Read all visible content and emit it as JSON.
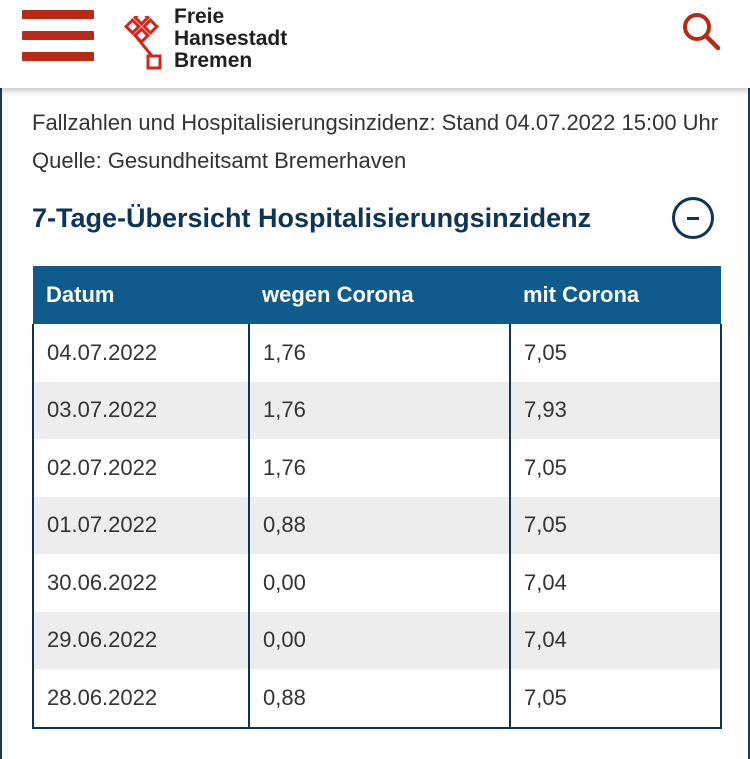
{
  "header": {
    "logo_lines": [
      "Freie",
      "Hansestadt",
      "Bremen"
    ],
    "brand_color": "#b82a16"
  },
  "source_text": "Fallzahlen und Hospitalisierungsinzidenz: Stand 04.07.2022 15:00 Uhr Quelle: Gesundheitsamt Bremerhaven",
  "section": {
    "title": "7-Tage-Übersicht Hospitalisierungsinzidenz",
    "title_color": "#0f3555"
  },
  "table": {
    "header_color": "#0f5b8c",
    "columns": [
      "Datum",
      "wegen Corona",
      "mit Corona"
    ],
    "rows": [
      [
        "04.07.2022",
        "1,76",
        "7,05"
      ],
      [
        "03.07.2022",
        "1,76",
        "7,93"
      ],
      [
        "02.07.2022",
        "1,76",
        "7,05"
      ],
      [
        "01.07.2022",
        "0,88",
        "7,05"
      ],
      [
        "30.06.2022",
        "0,00",
        "7,04"
      ],
      [
        "29.06.2022",
        "0,00",
        "7,04"
      ],
      [
        "28.06.2022",
        "0,88",
        "7,05"
      ]
    ]
  }
}
